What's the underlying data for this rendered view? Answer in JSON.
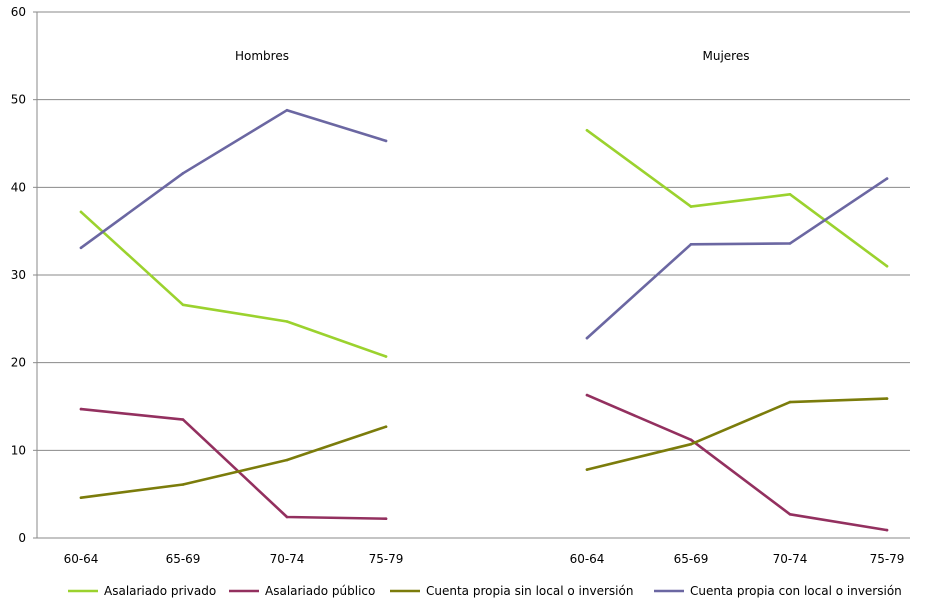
{
  "chart_data": {
    "type": "line",
    "ylim": [
      0,
      60
    ],
    "yticks": [
      "0",
      "10",
      "20",
      "30",
      "40",
      "50",
      "60"
    ],
    "grid": true,
    "legend_position": "bottom",
    "panels": [
      {
        "title": "Hombres",
        "categories": [
          "60-64",
          "65-69",
          "70-74",
          "75-79"
        ]
      },
      {
        "title": "Mujeres",
        "categories": [
          "60-64",
          "65-69",
          "70-74",
          "75-79"
        ]
      }
    ],
    "series": [
      {
        "name": "Asalariado privado",
        "color": "#9BD22E",
        "values": [
          [
            37.2,
            26.6,
            24.7,
            20.7
          ],
          [
            46.5,
            37.8,
            39.2,
            31.0
          ]
        ]
      },
      {
        "name": "Asalariado público",
        "color": "#93305F",
        "values": [
          [
            14.7,
            13.5,
            2.4,
            2.2
          ],
          [
            16.3,
            11.2,
            2.7,
            0.9
          ]
        ]
      },
      {
        "name": "Cuenta propia sin local o inversión",
        "color": "#7B7C0B",
        "values": [
          [
            4.6,
            6.1,
            8.9,
            12.7
          ],
          [
            7.8,
            10.7,
            15.5,
            15.9
          ]
        ]
      },
      {
        "name": "Cuenta propia con local o inversión",
        "color": "#6B67A2",
        "values": [
          [
            33.1,
            41.6,
            48.8,
            45.3
          ],
          [
            22.8,
            33.5,
            33.6,
            41.0
          ]
        ]
      }
    ]
  }
}
